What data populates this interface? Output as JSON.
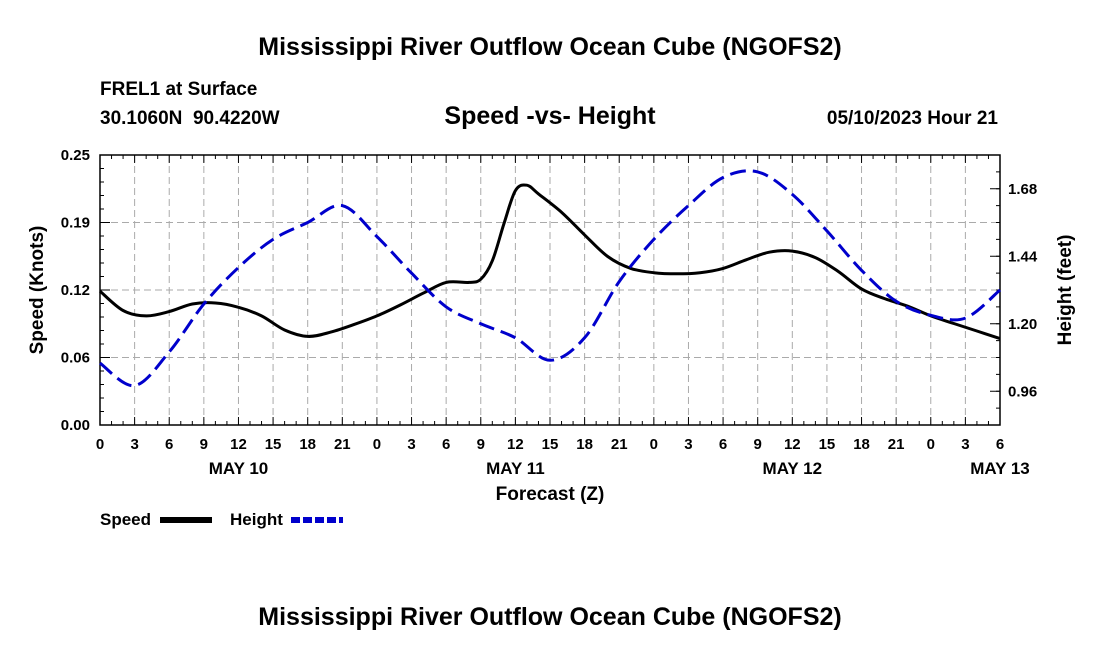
{
  "chart_data": {
    "type": "line",
    "title": "Mississippi River Outflow Ocean Cube (NGOFS2)",
    "station": "FREL1 at Surface",
    "location": "30.1060N  90.4220W",
    "subtitle": "Speed -vs- Height",
    "datetime": "05/10/2023 Hour 21",
    "xlabel": "Forecast (Z)",
    "ylabel_left": "Speed (Knots)",
    "ylabel_right": "Height (feet)",
    "x_hour_labels": [
      "0",
      "3",
      "6",
      "9",
      "12",
      "15",
      "18",
      "21",
      "0",
      "3",
      "6",
      "9",
      "12",
      "15",
      "18",
      "21",
      "0",
      "3",
      "6",
      "9",
      "12",
      "15",
      "18",
      "21",
      "0",
      "3",
      "6"
    ],
    "day_labels": [
      {
        "label": "MAY 10",
        "hour": 12
      },
      {
        "label": "MAY 11",
        "hour": 36
      },
      {
        "label": "MAY 12",
        "hour": 60
      },
      {
        "label": "MAY 13",
        "hour": 78
      }
    ],
    "xlim": [
      0,
      78
    ],
    "ylim_left": [
      0,
      0.25
    ],
    "ylim_right": [
      0.84,
      1.8
    ],
    "left_ticks": [
      "0.00",
      "0.06",
      "0.12",
      "0.19",
      "0.25"
    ],
    "left_tick_values": [
      0,
      0.0625,
      0.125,
      0.1875,
      0.25
    ],
    "right_ticks": [
      "0.96",
      "1.20",
      "1.44",
      "1.68"
    ],
    "right_tick_values": [
      0.96,
      1.2,
      1.44,
      1.68
    ],
    "series": [
      {
        "name": "Speed",
        "axis": "left",
        "color": "#000000",
        "style": "solid",
        "x": [
          0,
          2,
          4,
          6,
          8,
          10,
          12,
          14,
          16,
          18,
          20,
          22,
          24,
          26,
          28,
          30,
          32,
          33,
          34,
          35,
          36,
          37,
          38,
          40,
          42,
          44,
          46,
          48,
          50,
          52,
          54,
          56,
          58,
          60,
          62,
          64,
          66,
          68,
          70,
          72,
          74,
          76,
          78
        ],
        "values": [
          0.124,
          0.106,
          0.101,
          0.105,
          0.112,
          0.113,
          0.109,
          0.101,
          0.088,
          0.082,
          0.086,
          0.093,
          0.101,
          0.111,
          0.122,
          0.132,
          0.132,
          0.135,
          0.152,
          0.186,
          0.217,
          0.222,
          0.214,
          0.197,
          0.176,
          0.156,
          0.145,
          0.141,
          0.14,
          0.141,
          0.145,
          0.153,
          0.16,
          0.161,
          0.155,
          0.142,
          0.126,
          0.117,
          0.11,
          0.101,
          0.094,
          0.087,
          0.08
        ]
      },
      {
        "name": "Height",
        "axis": "right",
        "color": "#0000cc",
        "style": "dashed",
        "x": [
          0,
          3,
          6,
          9,
          12,
          15,
          18,
          21,
          24,
          27,
          30,
          33,
          36,
          39,
          42,
          45,
          48,
          51,
          54,
          57,
          60,
          63,
          66,
          69,
          72,
          75,
          78
        ],
        "values": [
          1.06,
          0.98,
          1.1,
          1.27,
          1.4,
          1.5,
          1.56,
          1.62,
          1.51,
          1.38,
          1.26,
          1.2,
          1.15,
          1.07,
          1.15,
          1.35,
          1.5,
          1.62,
          1.72,
          1.74,
          1.66,
          1.53,
          1.39,
          1.28,
          1.23,
          1.22,
          1.32
        ]
      }
    ],
    "legend": [
      {
        "label": "Speed",
        "style": "solid",
        "color": "#000000"
      },
      {
        "label": "Height",
        "style": "dashed",
        "color": "#0000cc"
      }
    ],
    "grid": true
  },
  "footer_title": "Mississippi River Outflow Ocean Cube (NGOFS2)"
}
